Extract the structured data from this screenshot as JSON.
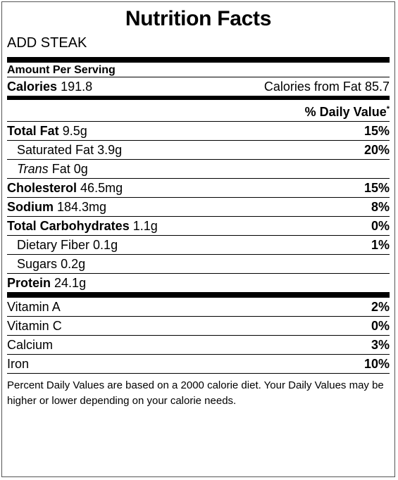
{
  "title": "Nutrition Facts",
  "subtitle": "ADD STEAK",
  "amount_per_serving": "Amount Per Serving",
  "calories": {
    "label": "Calories",
    "value": "191.8"
  },
  "calories_from_fat": {
    "label": "Calories from Fat",
    "value": "85.7"
  },
  "daily_value_header": "% Daily Value",
  "daily_value_mark": "*",
  "nutrients": {
    "total_fat": {
      "label": "Total Fat",
      "amount": "9.5g",
      "pct": "15%"
    },
    "saturated_fat": {
      "label": "Saturated Fat",
      "amount": "3.9g",
      "pct": "20%"
    },
    "trans_fat": {
      "label_italic": "Trans",
      "label": "Fat",
      "amount": "0g"
    },
    "cholesterol": {
      "label": "Cholesterol",
      "amount": "46.5mg",
      "pct": "15%"
    },
    "sodium": {
      "label": "Sodium",
      "amount": "184.3mg",
      "pct": "8%"
    },
    "total_carbs": {
      "label": "Total Carbohydrates",
      "amount": "1.1g",
      "pct": "0%"
    },
    "dietary_fiber": {
      "label": "Dietary Fiber",
      "amount": "0.1g",
      "pct": "1%"
    },
    "sugars": {
      "label": "Sugars",
      "amount": "0.2g"
    },
    "protein": {
      "label": "Protein",
      "amount": "24.1g"
    }
  },
  "vitamins": [
    {
      "label": "Vitamin A",
      "pct": "2%"
    },
    {
      "label": "Vitamin C",
      "pct": "0%"
    },
    {
      "label": "Calcium",
      "pct": "3%"
    },
    {
      "label": "Iron",
      "pct": "10%"
    }
  ],
  "footnote": "Percent Daily Values are based on a 2000 calorie diet. Your Daily Values may be higher or lower depending on your calorie needs."
}
